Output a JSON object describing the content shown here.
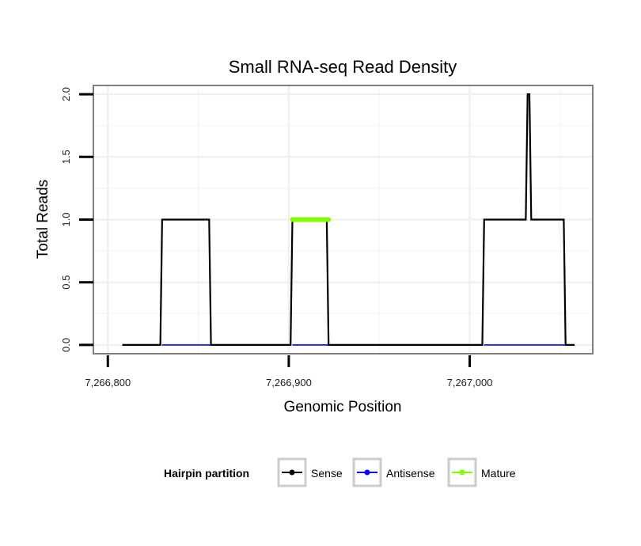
{
  "chart_data": {
    "type": "line",
    "title": "Small RNA-seq Read Density",
    "xlabel": "Genomic Position",
    "ylabel": "Total Reads",
    "xlim": [
      7266792,
      7267068
    ],
    "ylim": [
      -0.07,
      2.07
    ],
    "x_ticks": [
      7266800,
      7266900,
      7267000
    ],
    "x_tick_labels": [
      "7,266,800",
      "7,266,900",
      "7,267,000"
    ],
    "y_ticks": [
      0,
      0.5,
      1,
      1.5,
      2
    ],
    "y_tick_labels": [
      "0.0",
      "0.5",
      "1.0",
      "1.5",
      "2.0"
    ],
    "grid": true,
    "legend": {
      "title": "Hairpin partition",
      "position": "bottom",
      "entries": [
        {
          "name": "Sense",
          "color": "#000000"
        },
        {
          "name": "Antisense",
          "color": "#0000ff"
        },
        {
          "name": "Mature",
          "color": "#80ff00"
        }
      ]
    },
    "series": [
      {
        "name": "Sense",
        "color": "#000000",
        "x": [
          7266808,
          7266829,
          7266830,
          7266856,
          7266857,
          7266901,
          7266902,
          7266921,
          7266922,
          7267007,
          7267008,
          7267031,
          7267032,
          7267033,
          7267034,
          7267052,
          7267053,
          7267058
        ],
        "y": [
          0,
          0,
          1,
          1,
          0,
          0,
          1,
          1,
          0,
          0,
          1,
          1,
          2,
          2,
          1,
          1,
          0,
          0
        ]
      },
      {
        "name": "Antisense",
        "color": "#0000ff",
        "segments": [
          [
            7266830,
            7266857
          ],
          [
            7266902,
            7266922
          ],
          [
            7267008,
            7267053
          ]
        ],
        "value": 0
      },
      {
        "name": "Mature",
        "color": "#80ff00",
        "segments": [
          [
            7266902,
            7266922
          ]
        ],
        "value": 1
      }
    ]
  }
}
